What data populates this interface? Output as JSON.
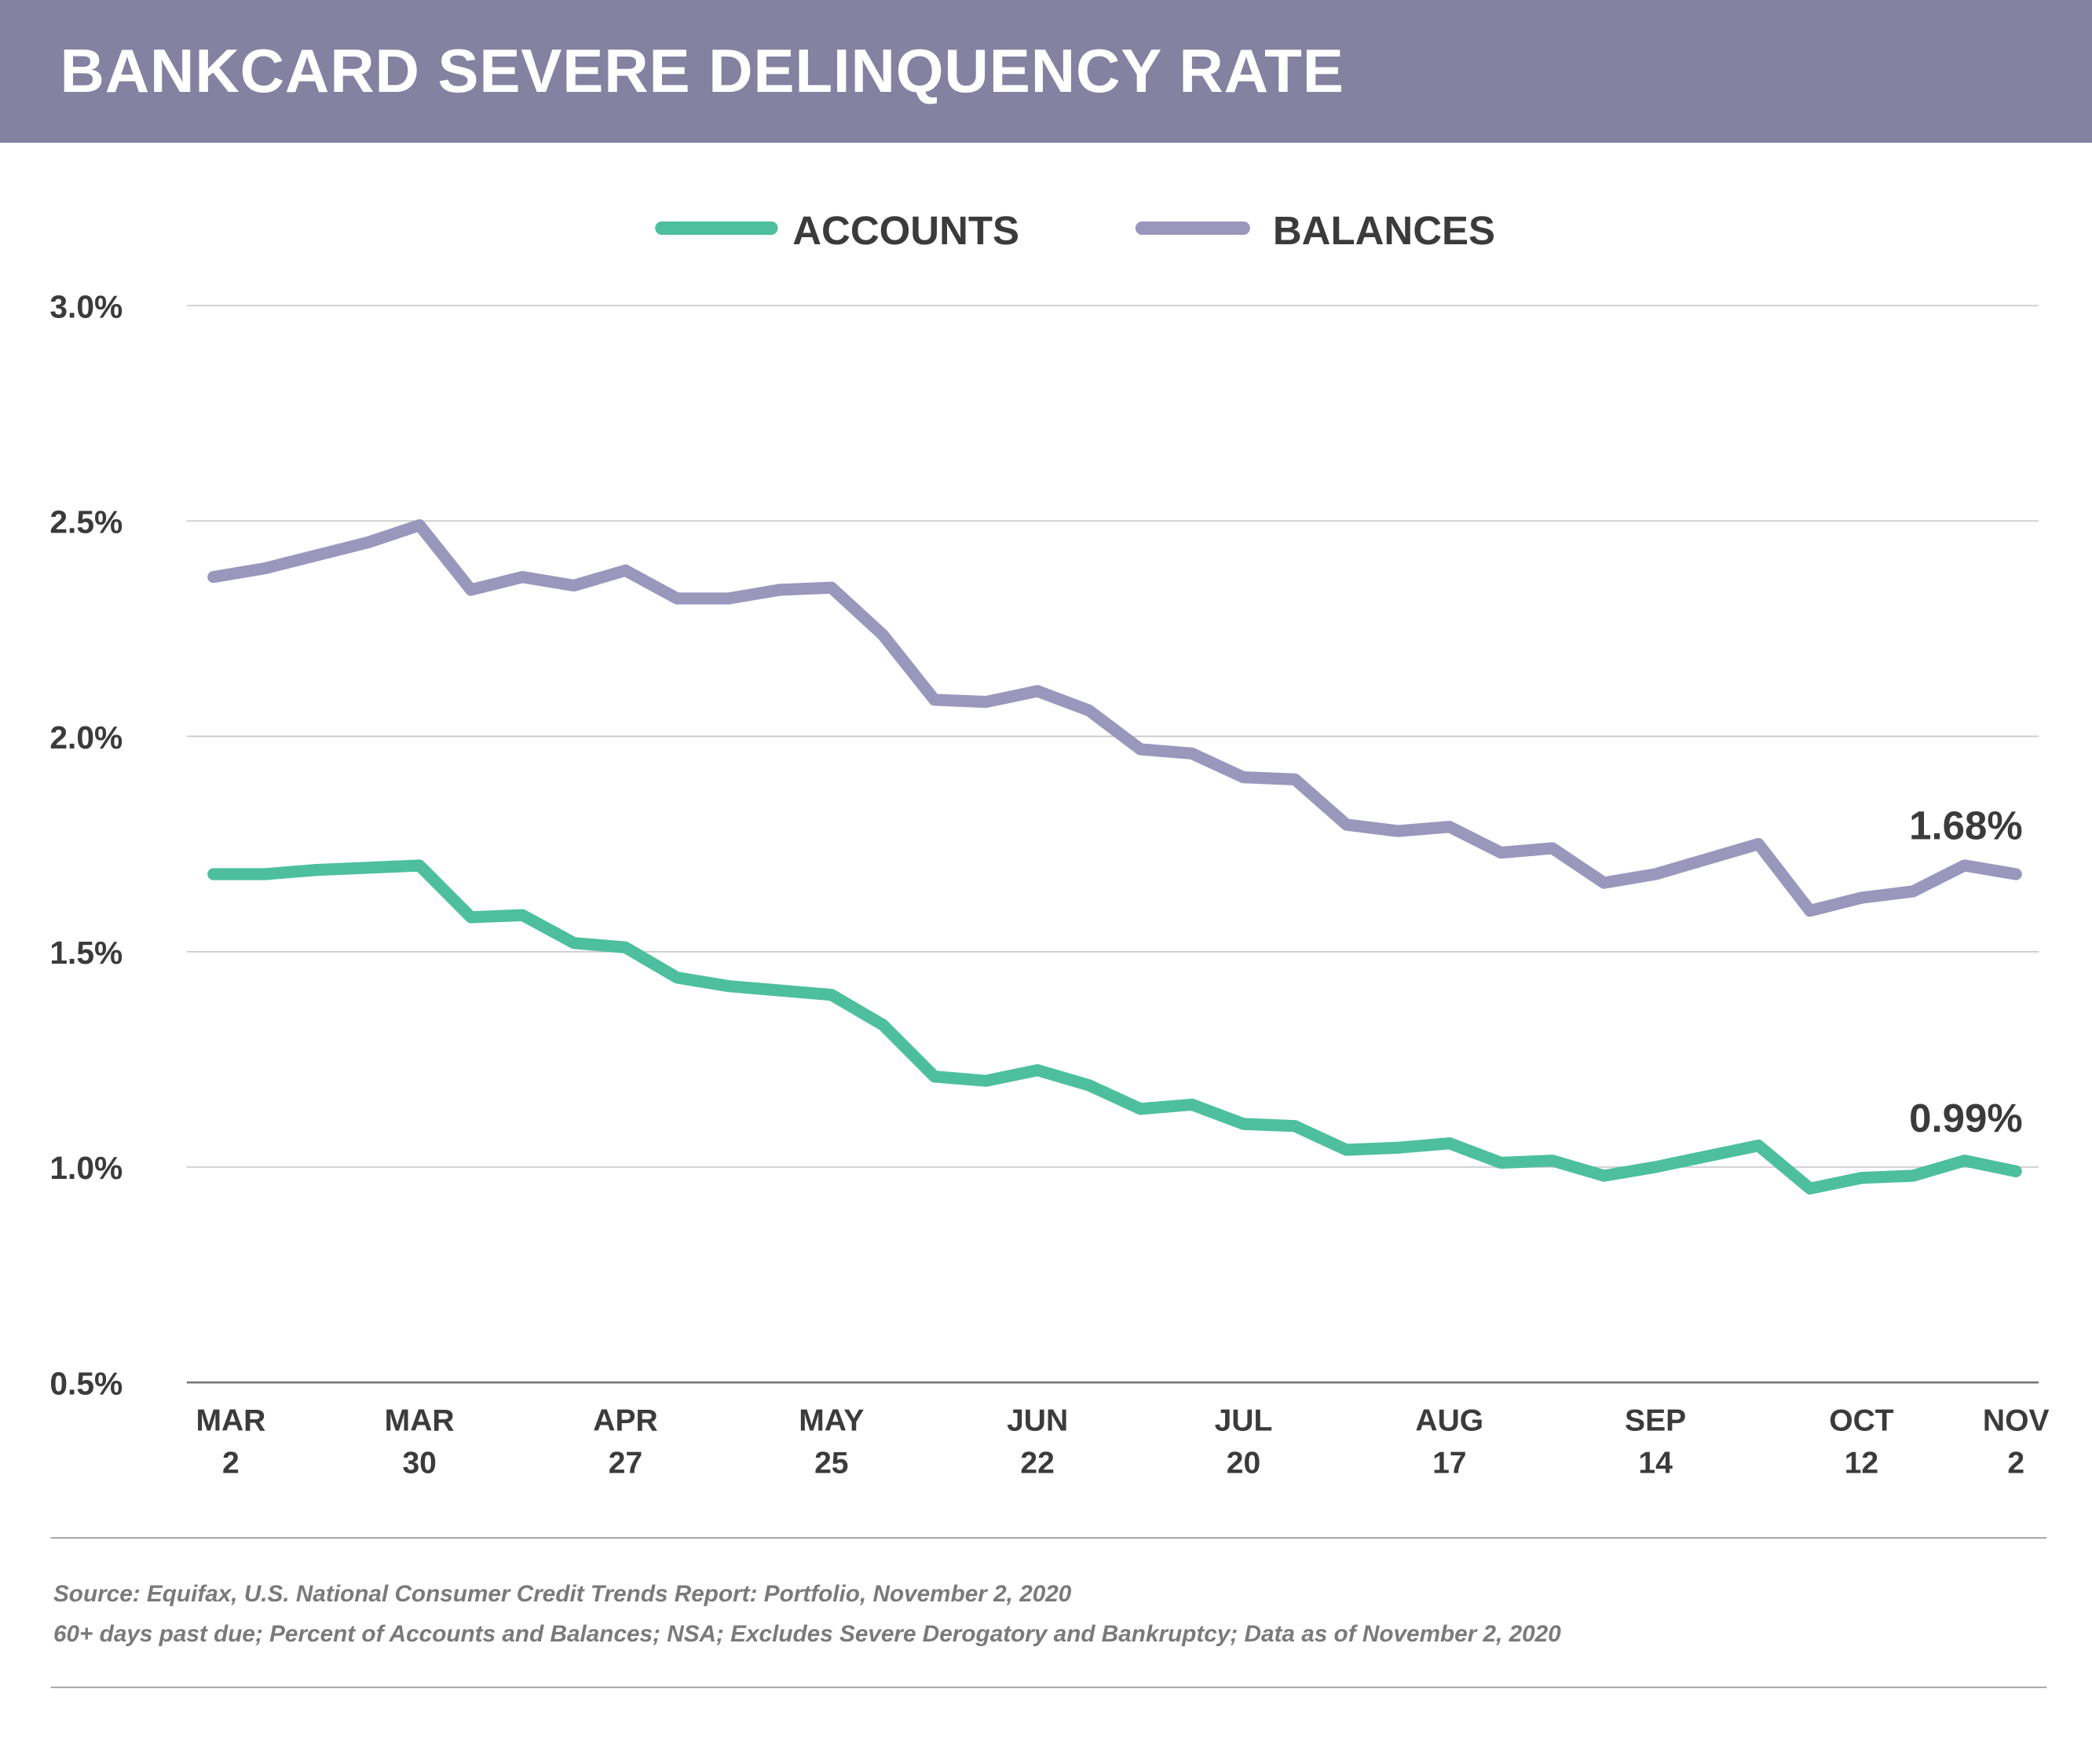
{
  "header": {
    "title": "BANKCARD SEVERE DELINQUENCY RATE",
    "color": "#8581a0"
  },
  "chart_data": {
    "type": "line",
    "title": "BANKCARD SEVERE DELINQUENCY RATE",
    "xlabel": "",
    "ylabel": "",
    "ylim": [
      0.5,
      3.0
    ],
    "yticks": [
      "0.5%",
      "1.0%",
      "1.5%",
      "2.0%",
      "2.5%",
      "3.0%"
    ],
    "ytick_values": [
      0.5,
      1.0,
      1.5,
      2.0,
      2.5,
      3.0
    ],
    "grid": true,
    "legend_position": "top-center",
    "x": [
      "2020-03-02",
      "2020-03-09",
      "2020-03-16",
      "2020-03-23",
      "2020-03-30",
      "2020-04-06",
      "2020-04-13",
      "2020-04-20",
      "2020-04-27",
      "2020-05-04",
      "2020-05-11",
      "2020-05-18",
      "2020-05-25",
      "2020-06-01",
      "2020-06-08",
      "2020-06-15",
      "2020-06-22",
      "2020-06-29",
      "2020-07-06",
      "2020-07-13",
      "2020-07-20",
      "2020-07-27",
      "2020-08-03",
      "2020-08-10",
      "2020-08-17",
      "2020-08-24",
      "2020-08-31",
      "2020-09-07",
      "2020-09-14",
      "2020-09-21",
      "2020-09-28",
      "2020-10-05",
      "2020-10-12",
      "2020-10-19",
      "2020-10-26",
      "2020-11-02"
    ],
    "xticks": [
      {
        "index": 0,
        "line1": "MAR",
        "line2": "2"
      },
      {
        "index": 4,
        "line1": "MAR",
        "line2": "30"
      },
      {
        "index": 8,
        "line1": "APR",
        "line2": "27"
      },
      {
        "index": 12,
        "line1": "MAY",
        "line2": "25"
      },
      {
        "index": 16,
        "line1": "JUN",
        "line2": "22"
      },
      {
        "index": 20,
        "line1": "JUL",
        "line2": "20"
      },
      {
        "index": 24,
        "line1": "AUG",
        "line2": "17"
      },
      {
        "index": 28,
        "line1": "SEP",
        "line2": "14"
      },
      {
        "index": 32,
        "line1": "OCT",
        "line2": "12"
      },
      {
        "index": 35,
        "line1": "NOV",
        "line2": "2"
      }
    ],
    "series": [
      {
        "name": "ACCOUNTS",
        "color": "#4dbf9f",
        "end_label": "0.99%",
        "values": [
          1.68,
          1.68,
          1.69,
          1.695,
          1.7,
          1.58,
          1.585,
          1.52,
          1.51,
          1.44,
          1.42,
          1.41,
          1.4,
          1.33,
          1.21,
          1.2,
          1.225,
          1.19,
          1.135,
          1.145,
          1.1,
          1.095,
          1.04,
          1.045,
          1.055,
          1.01,
          1.015,
          0.98,
          1.0,
          1.025,
          1.05,
          0.95,
          0.975,
          0.98,
          1.015,
          0.99
        ]
      },
      {
        "name": "BALANCES",
        "color": "#9a97bd",
        "end_label": "1.68%",
        "values": [
          2.37,
          2.39,
          2.42,
          2.45,
          2.49,
          2.34,
          2.37,
          2.35,
          2.385,
          2.32,
          2.32,
          2.34,
          2.345,
          2.235,
          2.085,
          2.08,
          2.105,
          2.06,
          1.97,
          1.96,
          1.905,
          1.9,
          1.795,
          1.78,
          1.79,
          1.73,
          1.74,
          1.66,
          1.68,
          1.715,
          1.75,
          1.595,
          1.625,
          1.64,
          1.7,
          1.68
        ]
      }
    ]
  },
  "footer": {
    "source": "Source: Equifax, U.S. National Consumer Credit Trends Report: Portfolio, November 2, 2020",
    "note": "60+ days past due; Percent of Accounts and Balances; NSA; Excludes Severe Derogatory and Bankruptcy; Data as of November 2, 2020"
  }
}
